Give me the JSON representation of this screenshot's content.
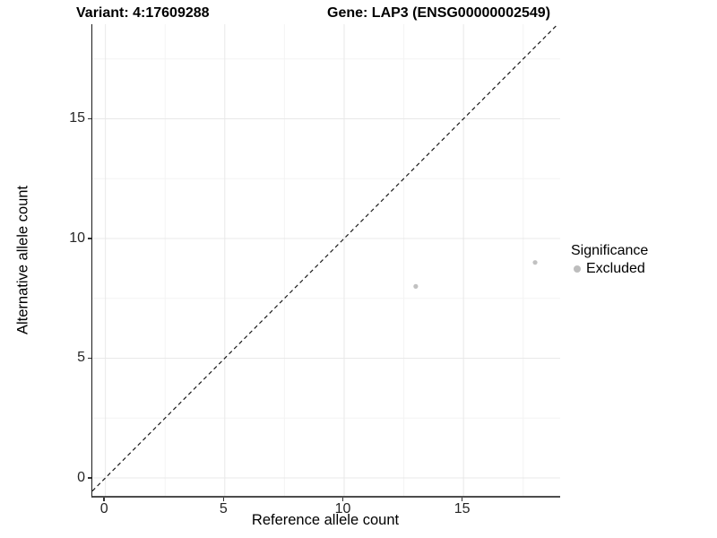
{
  "header": {
    "variant_title": "Variant: 4:17609288",
    "gene_title": "Gene: LAP3 (ENSG00000002549)"
  },
  "chart_data": {
    "type": "scatter",
    "title_left": "Variant: 4:17609288",
    "title_right": "Gene: LAP3 (ENSG00000002549)",
    "xlabel": "Reference allele count",
    "ylabel": "Alternative allele count",
    "xlim": [
      -0.55,
      19.05
    ],
    "ylim": [
      -0.75,
      18.95
    ],
    "x_ticks": [
      0,
      5,
      10,
      15
    ],
    "y_ticks": [
      0,
      5,
      10,
      15
    ],
    "x_minor_gridlines": [
      2.5,
      7.5,
      12.5,
      17.5
    ],
    "y_minor_gridlines": [
      2.5,
      7.5,
      12.5,
      17.5
    ],
    "grid": "major+minor",
    "identity_line": {
      "style": "dashed",
      "equation": "y = x"
    },
    "series": [
      {
        "name": "Excluded",
        "color": "#c1c1c1",
        "points": [
          {
            "x": 13,
            "y": 8
          },
          {
            "x": 18,
            "y": 9
          }
        ]
      }
    ],
    "legend": {
      "title": "Significance",
      "position": "right",
      "items": [
        {
          "label": "Excluded",
          "color": "#bdbdbd",
          "marker": "circle"
        }
      ]
    }
  },
  "colors": {
    "background": "#ffffff",
    "grid_major": "#e8e8e8",
    "grid_minor": "#f4f4f4",
    "axis_line_left": "#1a1a1a",
    "axis_line_bottom": "#4d4d4d",
    "tick_mark": "#333333",
    "tick_label": "#262626",
    "dashed_line": "#1a1a1a",
    "point": "#c1c1c1"
  }
}
